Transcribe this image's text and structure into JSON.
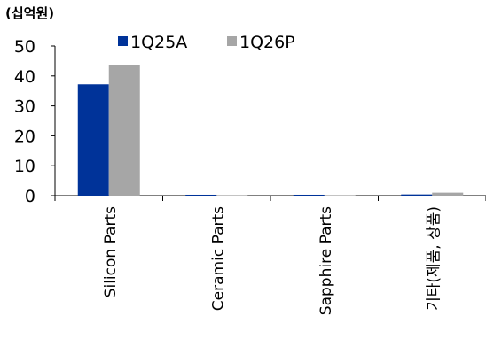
{
  "unit_label": "(십억원)",
  "chart_data": {
    "type": "bar",
    "categories": [
      "Silicon Parts",
      "Ceramic Parts",
      "Sapphire Parts",
      "기타(제품, 상품)"
    ],
    "series": [
      {
        "name": "1Q25A",
        "color": "#003399",
        "values": [
          37.2,
          0.3,
          0.3,
          0.4
        ]
      },
      {
        "name": "1Q26P",
        "color": "#a6a6a6",
        "values": [
          43.5,
          0.2,
          0.2,
          1.0
        ]
      }
    ],
    "ylim": [
      0,
      50
    ],
    "yticks": [
      0,
      10,
      20,
      30,
      40,
      50
    ],
    "legend": "top",
    "grid": false
  }
}
